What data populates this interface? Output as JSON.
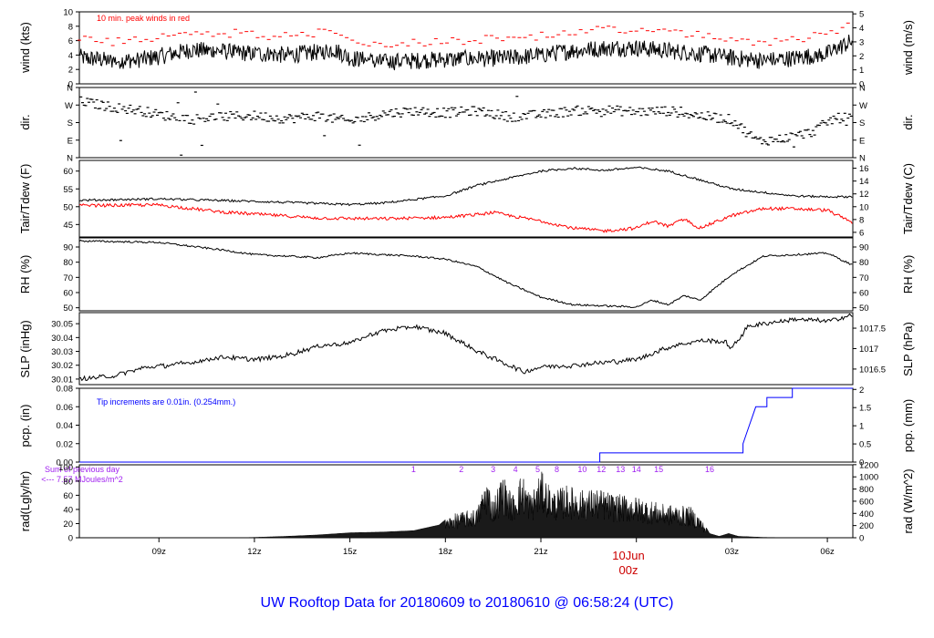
{
  "title": "UW Rooftop Data for 20180609  to  20180610 @ 06:58:24  (UTC)",
  "colors": {
    "axis": "#000000",
    "red": "#ff0000",
    "blue": "#0000ff",
    "purple": "#a020f0",
    "title": "#0000ff",
    "date": "#cc0000"
  },
  "time_axis": {
    "range_hours": [
      6.5,
      30.8
    ],
    "ticks": [
      {
        "h": 9,
        "label": "09z"
      },
      {
        "h": 12,
        "label": "12z"
      },
      {
        "h": 15,
        "label": "15z"
      },
      {
        "h": 18,
        "label": "18z"
      },
      {
        "h": 21,
        "label": "21z"
      },
      {
        "h": 24,
        "label": "00z"
      },
      {
        "h": 27,
        "label": "03z"
      },
      {
        "h": 30,
        "label": "06z"
      }
    ],
    "date_label": "10Jun",
    "date_hour_label": "00z"
  },
  "panels": {
    "wind": {
      "left_label": "wind (kts)",
      "right_label": "wind (m/s)",
      "left_ticks": [
        "0",
        "2",
        "4",
        "6",
        "8",
        "10"
      ],
      "right_ticks": [
        "0",
        "1",
        "2",
        "3",
        "4",
        "5"
      ],
      "ylim": [
        0,
        10
      ],
      "note": "10 min. peak winds in red",
      "series_anchor_kts": [
        [
          6.5,
          3.7
        ],
        [
          7.5,
          3.2
        ],
        [
          8.5,
          3.4
        ],
        [
          9,
          3.8
        ],
        [
          10,
          4.7
        ],
        [
          11,
          4.5
        ],
        [
          12,
          4.2
        ],
        [
          13,
          4.0
        ],
        [
          14,
          4.4
        ],
        [
          14.5,
          4.8
        ],
        [
          15,
          3.6
        ],
        [
          16,
          3.0
        ],
        [
          17,
          3.2
        ],
        [
          18,
          3.4
        ],
        [
          19,
          3.5
        ],
        [
          20,
          3.6
        ],
        [
          21,
          4.0
        ],
        [
          22,
          4.6
        ],
        [
          23,
          5.0
        ],
        [
          24,
          5.0
        ],
        [
          25,
          4.6
        ],
        [
          26,
          4.2
        ],
        [
          27,
          3.6
        ],
        [
          28,
          3.2
        ],
        [
          29,
          3.6
        ],
        [
          30,
          4.2
        ],
        [
          30.8,
          6.0
        ]
      ],
      "peak_offset_kts": 2.6
    },
    "dir": {
      "left_label": "dir.",
      "right_label": "dir.",
      "ticks": [
        "N",
        "E",
        "S",
        "W",
        "N"
      ],
      "ylim": [
        0,
        360
      ],
      "series_anchor_deg": [
        [
          6.5,
          290
        ],
        [
          7.5,
          260
        ],
        [
          8.5,
          240
        ],
        [
          9,
          220
        ],
        [
          10,
          200
        ],
        [
          11,
          210
        ],
        [
          12,
          215
        ],
        [
          13,
          200
        ],
        [
          14,
          215
        ],
        [
          15,
          185
        ],
        [
          16,
          225
        ],
        [
          17,
          240
        ],
        [
          18,
          230
        ],
        [
          19,
          240
        ],
        [
          20,
          210
        ],
        [
          21,
          220
        ],
        [
          22,
          240
        ],
        [
          23,
          245
        ],
        [
          24,
          235
        ],
        [
          25,
          240
        ],
        [
          26,
          215
        ],
        [
          27,
          195
        ],
        [
          27.8,
          85
        ],
        [
          28.5,
          95
        ],
        [
          29.5,
          130
        ],
        [
          30.2,
          200
        ],
        [
          30.8,
          210
        ]
      ]
    },
    "temp": {
      "left_label": "Tair/Tdew (F)",
      "right_label": "Tair/Tdew (C)",
      "left_ticks": [
        "45",
        "50",
        "55",
        "60"
      ],
      "right_ticks": [
        "6",
        "8",
        "10",
        "12",
        "14",
        "16"
      ],
      "ylim": [
        41.5,
        63
      ],
      "tair_anchor_F": [
        [
          6.5,
          51.8
        ],
        [
          9,
          52.2
        ],
        [
          12,
          51.5
        ],
        [
          15,
          50.6
        ],
        [
          16,
          51.0
        ],
        [
          18,
          53.0
        ],
        [
          19,
          56.0
        ],
        [
          20,
          58.0
        ],
        [
          21,
          60.0
        ],
        [
          22,
          60.8
        ],
        [
          23,
          60.2
        ],
        [
          24,
          61.0
        ],
        [
          25,
          60.0
        ],
        [
          25.5,
          58.8
        ],
        [
          26,
          57.5
        ],
        [
          27,
          55.0
        ],
        [
          28,
          54.0
        ],
        [
          29,
          53.0
        ],
        [
          30,
          52.8
        ],
        [
          30.8,
          52.8
        ]
      ],
      "tdew_anchor_F": [
        [
          6.5,
          50.3
        ],
        [
          9,
          50.5
        ],
        [
          11,
          48.5
        ],
        [
          14,
          46.8
        ],
        [
          16,
          46.6
        ],
        [
          18,
          47.0
        ],
        [
          19,
          47.8
        ],
        [
          19.5,
          48.4
        ],
        [
          20,
          47.5
        ],
        [
          21,
          46.0
        ],
        [
          22,
          44.0
        ],
        [
          23,
          43.2
        ],
        [
          24,
          44.0
        ],
        [
          24.5,
          46.0
        ],
        [
          25,
          44.5
        ],
        [
          25.5,
          46.5
        ],
        [
          26,
          44.0
        ],
        [
          27,
          47.5
        ],
        [
          28,
          49.5
        ],
        [
          29,
          49.4
        ],
        [
          30,
          49.0
        ],
        [
          30.8,
          45.5
        ]
      ]
    },
    "rh": {
      "left_label": "RH (%)",
      "right_label": "RH (%)",
      "ticks": [
        "50",
        "60",
        "70",
        "80",
        "90"
      ],
      "ylim": [
        48,
        96
      ],
      "series_anchor_pct": [
        [
          6.5,
          94
        ],
        [
          9,
          93
        ],
        [
          11,
          88
        ],
        [
          12,
          85
        ],
        [
          13,
          84
        ],
        [
          14,
          83
        ],
        [
          15,
          86
        ],
        [
          17,
          84
        ],
        [
          18,
          82
        ],
        [
          19,
          77
        ],
        [
          20,
          66
        ],
        [
          21,
          57
        ],
        [
          22,
          52
        ],
        [
          24,
          50.5
        ],
        [
          24.5,
          55
        ],
        [
          25,
          52
        ],
        [
          25.5,
          58
        ],
        [
          26,
          55
        ],
        [
          27,
          72
        ],
        [
          28,
          84
        ],
        [
          29,
          85
        ],
        [
          30,
          86
        ],
        [
          30.8,
          78
        ]
      ]
    },
    "slp": {
      "left_label": "SLP (inHg)",
      "right_label": "SLP (hPa)",
      "left_ticks": [
        "30.01",
        "30.02",
        "30.03",
        "30.04",
        "30.05"
      ],
      "right_ticks": [
        "1016.5",
        "1017",
        "1017.5"
      ],
      "ylim": [
        30.006,
        30.058
      ],
      "series_anchor_inhg": [
        [
          6.5,
          30.01
        ],
        [
          7.5,
          30.012
        ],
        [
          8.5,
          30.018
        ],
        [
          10,
          30.022
        ],
        [
          11,
          30.026
        ],
        [
          12,
          30.024
        ],
        [
          13,
          30.027
        ],
        [
          14,
          30.034
        ],
        [
          15,
          30.036
        ],
        [
          16,
          30.045
        ],
        [
          17,
          30.048
        ],
        [
          18,
          30.043
        ],
        [
          19,
          30.03
        ],
        [
          20,
          30.02
        ],
        [
          20.5,
          30.015
        ],
        [
          21,
          30.019
        ],
        [
          22,
          30.02
        ],
        [
          23,
          30.022
        ],
        [
          24,
          30.024
        ],
        [
          25,
          30.033
        ],
        [
          26,
          30.038
        ],
        [
          26.8,
          30.037
        ],
        [
          27,
          30.032
        ],
        [
          27.5,
          30.048
        ],
        [
          28,
          30.05
        ],
        [
          29,
          30.053
        ],
        [
          30,
          30.052
        ],
        [
          30.8,
          30.056
        ]
      ]
    },
    "pcp": {
      "left_label": "pcp. (in)",
      "right_label": "pcp. (mm)",
      "left_ticks": [
        "0.00",
        "0.02",
        "0.04",
        "0.06",
        "0.08"
      ],
      "right_ticks": [
        "0",
        "0.5",
        "1",
        "1.5",
        "2"
      ],
      "ylim": [
        0,
        0.08
      ],
      "note": "Tip increments are 0.01in. (0.254mm.)",
      "steps_in": [
        [
          6.5,
          0
        ],
        [
          22.85,
          0
        ],
        [
          22.85,
          0.01
        ],
        [
          27.35,
          0.01
        ],
        [
          27.35,
          0.02
        ],
        [
          27.45,
          0.03
        ],
        [
          27.55,
          0.04
        ],
        [
          27.65,
          0.05
        ],
        [
          27.75,
          0.06
        ],
        [
          28.1,
          0.06
        ],
        [
          28.1,
          0.07
        ],
        [
          28.9,
          0.07
        ],
        [
          28.9,
          0.08
        ],
        [
          30.8,
          0.08
        ]
      ]
    },
    "rad": {
      "left_label": "rad(Lgly/hr)",
      "right_label": "rad (W/m^2)",
      "left_ticks": [
        "0",
        "20",
        "40",
        "60",
        "80",
        "100"
      ],
      "right_ticks": [
        "0",
        "200",
        "400",
        "600",
        "800",
        "1000",
        "1200"
      ],
      "ylim": [
        0,
        103
      ],
      "sum_label_1": "Sum of previous day",
      "sum_label_2": "<--- 7.57 MJoules/m^2",
      "hour_marks": [
        {
          "h": 17.0,
          "label": "1"
        },
        {
          "h": 18.5,
          "label": "2"
        },
        {
          "h": 19.5,
          "label": "3"
        },
        {
          "h": 20.2,
          "label": "4"
        },
        {
          "h": 20.9,
          "label": "5"
        },
        {
          "h": 21.5,
          "label": "8"
        },
        {
          "h": 22.3,
          "label": "10"
        },
        {
          "h": 22.9,
          "label": "12"
        },
        {
          "h": 23.5,
          "label": "13"
        },
        {
          "h": 24.0,
          "label": "14"
        },
        {
          "h": 24.7,
          "label": "15"
        },
        {
          "h": 26.3,
          "label": "16"
        }
      ]
    }
  }
}
